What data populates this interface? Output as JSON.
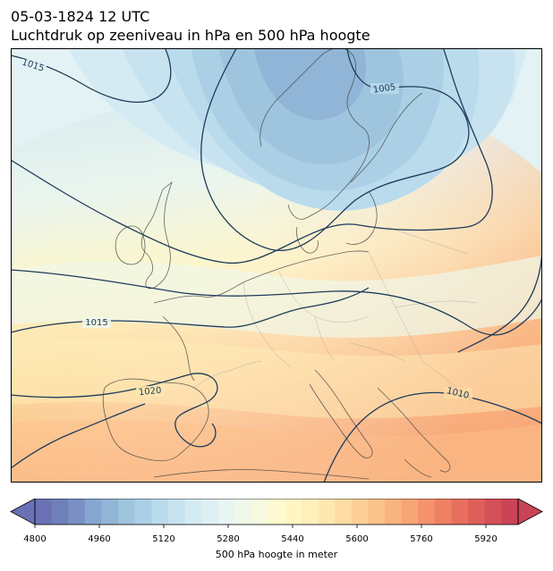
{
  "title": {
    "datetime": "05-03-1824 12 UTC",
    "subtitle": "Luchtdruk op zeeniveau in hPa en 500 hPa hoogte"
  },
  "map": {
    "region": "Europa",
    "isobar_labels": [
      {
        "text": "1015"
      },
      {
        "text": "1005"
      },
      {
        "text": "1015"
      },
      {
        "text": "1020"
      },
      {
        "text": "1010"
      }
    ]
  },
  "colorbar": {
    "label": "500 hPa hoogte in meter",
    "min": 4800,
    "max": 6000,
    "step": 40,
    "ticks": [
      "4800",
      "4960",
      "5120",
      "5280",
      "5440",
      "5600",
      "5760",
      "5920"
    ],
    "colors": [
      "#6a71b5",
      "#6f7fba",
      "#7a8fc3",
      "#86a6cf",
      "#90b5d6",
      "#9fc4de",
      "#abd0e5",
      "#b9dbec",
      "#c8e3f0",
      "#d4ebf3",
      "#dff0f4",
      "#e8f5f1",
      "#f0f8ea",
      "#f6fae0",
      "#fdfbcf",
      "#fff6c4",
      "#ffefbb",
      "#ffe7b0",
      "#fedca3",
      "#fdd097",
      "#fcc28b",
      "#f9b37f",
      "#f7a476",
      "#f3926c",
      "#ee8063",
      "#e66f5f",
      "#de5f5a",
      "#d45057",
      "#c94456"
    ]
  }
}
